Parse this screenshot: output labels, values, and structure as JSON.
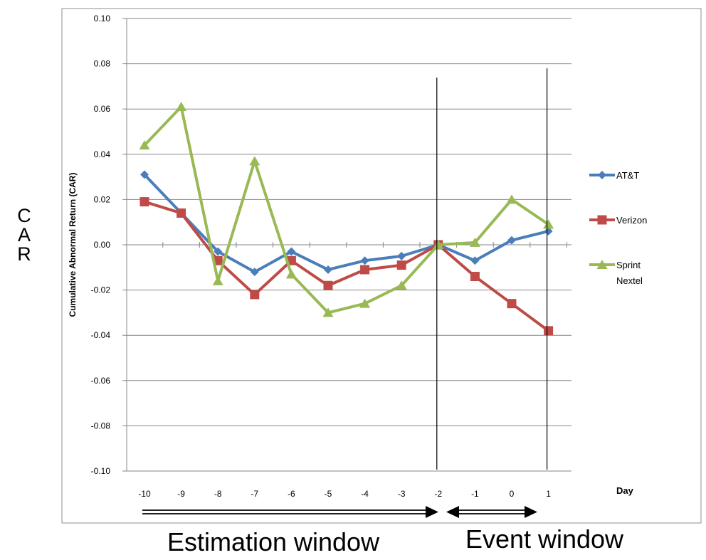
{
  "chart_data": {
    "type": "line",
    "title": "",
    "ylabel": "Cumulative Abnormal Return (CAR)",
    "xlabel": "Day",
    "ylim": [
      -0.1,
      0.1
    ],
    "yticks": [
      "0.10",
      "0.08",
      "0.06",
      "0.04",
      "0.02",
      "0.00",
      "-0.02",
      "-0.04",
      "-0.06",
      "-0.08",
      "-0.10"
    ],
    "categories": [
      "-10",
      "-9",
      "-8",
      "-7",
      "-6",
      "-5",
      "-4",
      "-3",
      "-2",
      "-1",
      "0",
      "1"
    ],
    "series": [
      {
        "name": "AT&T",
        "color": "#4a7ebb",
        "marker": "diamond",
        "values": [
          0.031,
          0.014,
          -0.003,
          -0.012,
          -0.003,
          -0.011,
          -0.007,
          -0.005,
          0.0,
          -0.007,
          0.002,
          0.006
        ]
      },
      {
        "name": "Verizon",
        "color": "#be4b48",
        "marker": "square",
        "values": [
          0.019,
          0.014,
          -0.007,
          -0.022,
          -0.007,
          -0.018,
          -0.011,
          -0.009,
          0.0,
          -0.014,
          -0.026,
          -0.038
        ]
      },
      {
        "name": "Sprint Nextel",
        "color": "#98b954",
        "marker": "triangle",
        "values": [
          0.044,
          0.061,
          -0.016,
          0.037,
          -0.013,
          -0.03,
          -0.026,
          -0.018,
          0.0,
          0.001,
          0.02,
          0.009
        ]
      }
    ],
    "vertical_lines_at": [
      "-2",
      "1"
    ],
    "legend_position": "right",
    "grid": true
  },
  "annotations": {
    "car_side_label": "CAR",
    "estimation_window": "Estimation window",
    "event_window": "Event window"
  }
}
